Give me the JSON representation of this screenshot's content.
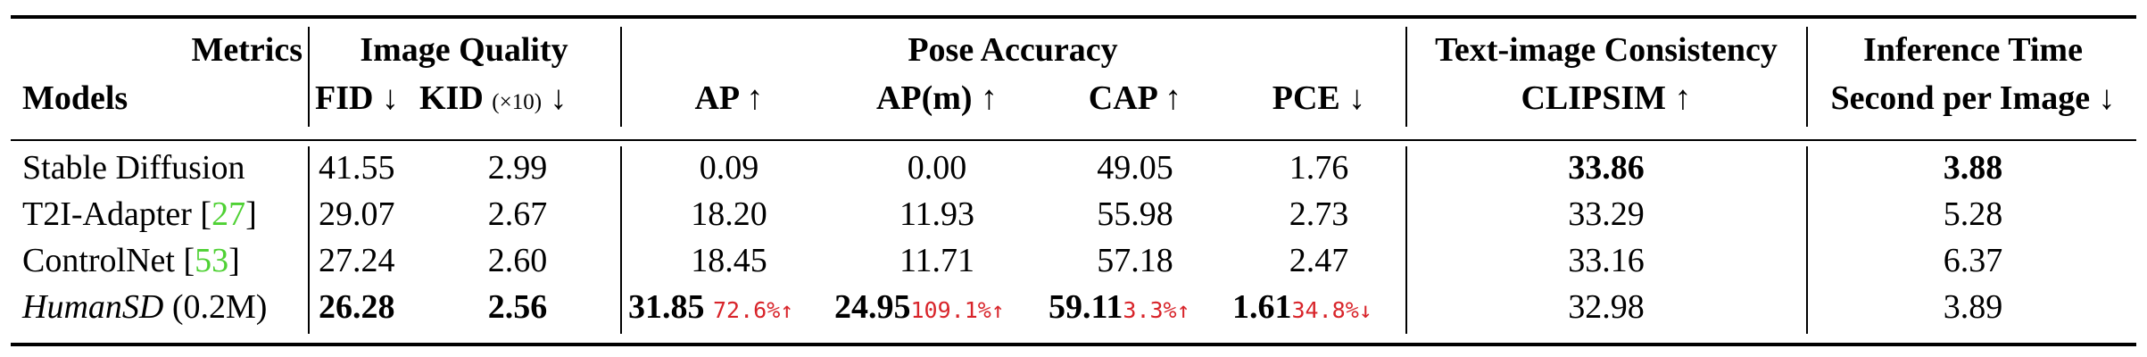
{
  "header": {
    "metrics": "Metrics",
    "models": "Models",
    "image_quality": "Image Quality",
    "fid": "FID ↓",
    "kid": "KID",
    "kid_scale": "(×10)",
    "kid_arrow": "↓",
    "pose_accuracy": "Pose Accuracy",
    "ap": "AP ↑",
    "apm": "AP(m) ↑",
    "cap": "CAP ↑",
    "pce": "PCE ↓",
    "text_image": "Text-image Consistency",
    "clipsim": "CLIPSIM ↑",
    "inference": "Inference Time",
    "spi": "Second per Image ↓"
  },
  "rows": [
    {
      "model": "Stable Diffusion",
      "cite": "",
      "fid": "41.55",
      "kid": "2.99",
      "ap": "0.09",
      "apm": "0.00",
      "cap": "49.05",
      "pce": "1.76",
      "clipsim": "33.86",
      "time": "3.88"
    },
    {
      "model": "T2I-Adapter [",
      "cite": "27",
      "model_end": "]",
      "fid": "29.07",
      "kid": "2.67",
      "ap": "18.20",
      "apm": "11.93",
      "cap": "55.98",
      "pce": "2.73",
      "clipsim": "33.29",
      "time": "5.28"
    },
    {
      "model": "ControlNet [",
      "cite": "53",
      "model_end": "]",
      "fid": "27.24",
      "kid": "2.60",
      "ap": "18.45",
      "apm": "11.71",
      "cap": "57.18",
      "pce": "2.47",
      "clipsim": "33.16",
      "time": "6.37"
    },
    {
      "model": "HumanSD",
      "model_suffix": "(0.2M)",
      "fid": "26.28",
      "kid": "2.56",
      "ap": "31.85",
      "ap_pct": "72.6%↑",
      "apm": "24.95",
      "apm_pct": "109.1%↑",
      "cap": "59.11",
      "cap_pct": "3.3%↑",
      "pce": "1.61",
      "pce_pct": "34.8%↓",
      "clipsim": "32.98",
      "time": "3.89"
    }
  ]
}
